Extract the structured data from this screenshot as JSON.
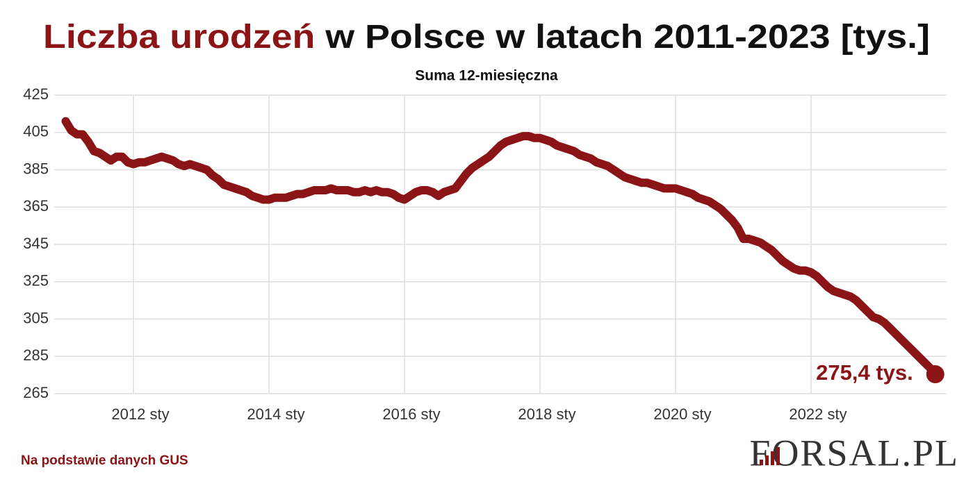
{
  "chart_data": {
    "type": "line",
    "title_highlight": "Liczba urodzeń",
    "title": "w Polsce w latach 2011-2023 [tys.]",
    "subtitle": "Suma 12-miesięczna",
    "source": "Na podstawie danych GUS",
    "logo": "FORSAL.PL",
    "categories": [
      null,
      null,
      null,
      null,
      null,
      null,
      null,
      null,
      null,
      null,
      null,
      null,
      "2012 sty",
      null,
      null,
      null,
      null,
      null,
      null,
      null,
      null,
      null,
      null,
      null,
      null,
      null,
      null,
      null,
      null,
      null,
      null,
      null,
      null,
      null,
      null,
      null,
      "2014 sty",
      null,
      null,
      null,
      null,
      null,
      null,
      null,
      null,
      null,
      null,
      null,
      null,
      null,
      null,
      null,
      null,
      null,
      null,
      null,
      null,
      null,
      null,
      null,
      "2016 sty",
      null,
      null,
      null,
      null,
      null,
      null,
      null,
      null,
      null,
      null,
      null,
      null,
      null,
      null,
      null,
      null,
      null,
      null,
      null,
      null,
      null,
      null,
      null,
      "2018 sty",
      null,
      null,
      null,
      null,
      null,
      null,
      null,
      null,
      null,
      null,
      null,
      null,
      null,
      null,
      null,
      null,
      null,
      null,
      null,
      null,
      null,
      null,
      null,
      "2020 sty",
      null,
      null,
      null,
      null,
      null,
      null,
      null,
      null,
      null,
      null,
      null,
      null,
      null,
      null,
      null,
      null,
      null,
      null,
      null,
      null,
      null,
      null,
      null,
      "2022 sty",
      null,
      null,
      null,
      null,
      null,
      null,
      null,
      null,
      null,
      null,
      null,
      null,
      null,
      null,
      null,
      null,
      null,
      null,
      null,
      null,
      null,
      null
    ],
    "series": [
      {
        "name": "Liczba urodzeń",
        "color": "#8b1416",
        "values": [
          411,
          406,
          404,
          404,
          400,
          395,
          394,
          392,
          390,
          392,
          392,
          389,
          388,
          389,
          389,
          390,
          391,
          392,
          391,
          390,
          388,
          387,
          388,
          387,
          386,
          385,
          382,
          380,
          377,
          376,
          375,
          374,
          373,
          371,
          370,
          369,
          369,
          370,
          370,
          370,
          371,
          372,
          372,
          373,
          374,
          374,
          374,
          375,
          374,
          374,
          374,
          373,
          373,
          374,
          373,
          374,
          373,
          373,
          372,
          370,
          369,
          371,
          373,
          374,
          374,
          373,
          371,
          373,
          374,
          375,
          379,
          383,
          386,
          388,
          390,
          392,
          395,
          398,
          400,
          401,
          402,
          403,
          403,
          402,
          402,
          401,
          400,
          398,
          397,
          396,
          395,
          393,
          392,
          391,
          389,
          388,
          387,
          385,
          383,
          381,
          380,
          379,
          378,
          378,
          377,
          376,
          375,
          375,
          375,
          374,
          373,
          372,
          370,
          369,
          368,
          366,
          364,
          361,
          358,
          354,
          348,
          348,
          347,
          346,
          344,
          342,
          339,
          336,
          334,
          332,
          331,
          331,
          330,
          328,
          325,
          322,
          320,
          319,
          318,
          317,
          315,
          312,
          309,
          306,
          305,
          303,
          300,
          297,
          294,
          291,
          288,
          285,
          282,
          279,
          275.4
        ],
        "value_labels": [
          null,
          null,
          null,
          null,
          null,
          null,
          null,
          null,
          null,
          null,
          null,
          null,
          null,
          null,
          null,
          null,
          null,
          null,
          null,
          null,
          null,
          null,
          null,
          null,
          null,
          null,
          null,
          null,
          null,
          null,
          null,
          null,
          null,
          null,
          null,
          null,
          null,
          null,
          null,
          null,
          null,
          null,
          null,
          null,
          null,
          null,
          null,
          null,
          null,
          null,
          null,
          null,
          null,
          null,
          null,
          null,
          null,
          null,
          null,
          null,
          null,
          null,
          null,
          null,
          null,
          null,
          null,
          null,
          null,
          null,
          null,
          null,
          null,
          null,
          null,
          null,
          null,
          null,
          null,
          null,
          null,
          null,
          null,
          null,
          null,
          null,
          null,
          null,
          null,
          null,
          null,
          null,
          null,
          null,
          null,
          null,
          null,
          null,
          null,
          null,
          null,
          null,
          null,
          null,
          null,
          null,
          null,
          null,
          null,
          null,
          null,
          null,
          null,
          null,
          null,
          null,
          null,
          null,
          null,
          null,
          null,
          null,
          null,
          null,
          null,
          null,
          null,
          null,
          null,
          null,
          null,
          null,
          null,
          null,
          null,
          null,
          null,
          null,
          null,
          null,
          null,
          null,
          null,
          null,
          null,
          null,
          null,
          null,
          null,
          null,
          null,
          null,
          null,
          null,
          "275,4 tys."
        ]
      }
    ],
    "ylim": [
      265,
      425
    ],
    "yticks": [
      265,
      285,
      305,
      325,
      345,
      365,
      385,
      405,
      425
    ],
    "grid": true
  }
}
